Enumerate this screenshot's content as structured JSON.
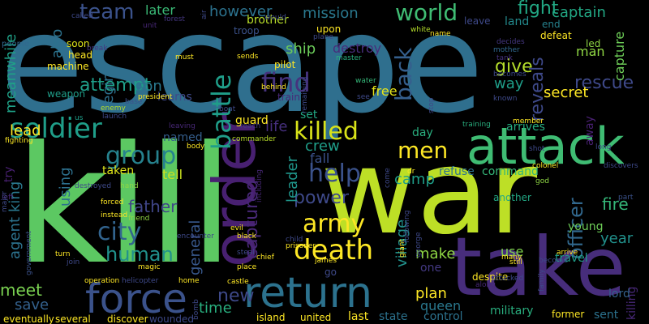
{
  "background": "#000000",
  "words": [
    {
      "text": "escape",
      "color": "#2f6f8e"
    },
    {
      "text": "kill",
      "color": "#5cc862"
    },
    {
      "text": "war",
      "color": "#bddf26"
    },
    {
      "text": "take",
      "color": "#472d7b"
    },
    {
      "text": "attack",
      "color": "#3fbc73"
    },
    {
      "text": "order",
      "color": "#482071"
    },
    {
      "text": "return",
      "color": "#2c728e"
    },
    {
      "text": "force",
      "color": "#3b528b"
    },
    {
      "text": "death",
      "color": "#fde725"
    },
    {
      "text": "army",
      "color": "#fde725"
    },
    {
      "text": "find",
      "color": "#46337e"
    },
    {
      "text": "world",
      "color": "#3fbc73"
    },
    {
      "text": "battle",
      "color": "#1f9e89"
    },
    {
      "text": "soldier",
      "color": "#1f9e89"
    },
    {
      "text": "killed",
      "color": "#d8e219"
    },
    {
      "text": "group",
      "color": "#26828e"
    },
    {
      "text": "city",
      "color": "#32648e"
    },
    {
      "text": "help",
      "color": "#3b528b"
    },
    {
      "text": "human",
      "color": "#21918c"
    },
    {
      "text": "team",
      "color": "#3b528b"
    },
    {
      "text": "men",
      "color": "#fde725"
    },
    {
      "text": "back",
      "color": "#355f8d"
    },
    {
      "text": "fight",
      "color": "#22a884"
    },
    {
      "text": "captain",
      "color": "#22a884"
    },
    {
      "text": "mission",
      "color": "#2a788e"
    },
    {
      "text": "however",
      "color": "#2c728e"
    },
    {
      "text": "rescue",
      "color": "#3e4989"
    },
    {
      "text": "new",
      "color": "#3e4989"
    },
    {
      "text": "power",
      "color": "#3e4989"
    },
    {
      "text": "captured",
      "color": "#482878"
    },
    {
      "text": "officer",
      "color": "#31688e"
    },
    {
      "text": "reveals",
      "color": "#3e4989"
    },
    {
      "text": "father",
      "color": "#404688"
    },
    {
      "text": "give",
      "color": "#b5de2b"
    },
    {
      "text": "plan",
      "color": "#fde725"
    },
    {
      "text": "queen",
      "color": "#2a788e"
    },
    {
      "text": "village",
      "color": "#21918c"
    },
    {
      "text": "general",
      "color": "#38588c"
    },
    {
      "text": "agent",
      "color": "#2c728e"
    },
    {
      "text": "king",
      "color": "#2a788e"
    },
    {
      "text": "attempt",
      "color": "#1f9e89"
    },
    {
      "text": "son",
      "color": "#2a788e"
    },
    {
      "text": "lead",
      "color": "#fde725"
    },
    {
      "text": "camp",
      "color": "#1f9e89"
    },
    {
      "text": "crew",
      "color": "#1f9e89"
    },
    {
      "text": "fire",
      "color": "#35b779"
    },
    {
      "text": "year",
      "color": "#21918c"
    },
    {
      "text": "time",
      "color": "#29af7f"
    },
    {
      "text": "meet",
      "color": "#7ad151"
    },
    {
      "text": "save",
      "color": "#34618d"
    },
    {
      "text": "make",
      "color": "#8fd744"
    },
    {
      "text": "way",
      "color": "#1f9e89"
    },
    {
      "text": "secret",
      "color": "#fde725"
    },
    {
      "text": "later",
      "color": "#3aba76"
    },
    {
      "text": "ship",
      "color": "#6ccd5a"
    },
    {
      "text": "destroy",
      "color": "#472d7b"
    },
    {
      "text": "also",
      "color": "#2c728e"
    },
    {
      "text": "tell",
      "color": "#cae11f"
    },
    {
      "text": "named",
      "color": "#355f8d"
    },
    {
      "text": "life",
      "color": "#462f7e"
    },
    {
      "text": "leader",
      "color": "#1f968b"
    },
    {
      "text": "meanwhile",
      "color": "#1fa187"
    },
    {
      "text": "using",
      "color": "#2d708e"
    },
    {
      "text": "begin",
      "color": "#2d708e"
    },
    {
      "text": "taken",
      "color": "#dde318"
    },
    {
      "text": "free",
      "color": "#e5e419"
    },
    {
      "text": "fall",
      "color": "#3b528b"
    },
    {
      "text": "refuse",
      "color": "#2c728e"
    },
    {
      "text": "command",
      "color": "#35b779"
    },
    {
      "text": "use",
      "color": "#7fd34e"
    },
    {
      "text": "travel",
      "color": "#1f9e89"
    },
    {
      "text": "man",
      "color": "#8fd744"
    },
    {
      "text": "land",
      "color": "#238a8d"
    },
    {
      "text": "capture",
      "color": "#6ece58"
    },
    {
      "text": "arrives",
      "color": "#26ad81"
    },
    {
      "text": "day",
      "color": "#29af7f"
    },
    {
      "text": "military",
      "color": "#29af7f"
    },
    {
      "text": "state",
      "color": "#2c728e"
    },
    {
      "text": "control",
      "color": "#2c728e"
    },
    {
      "text": "killing",
      "color": "#482878"
    },
    {
      "text": "sent",
      "color": "#2c728e"
    },
    {
      "text": "lord",
      "color": "#34618d"
    },
    {
      "text": "young",
      "color": "#6ece58"
    },
    {
      "text": "one",
      "color": "#443983"
    },
    {
      "text": "learns",
      "color": "#3e4989"
    },
    {
      "text": "guard",
      "color": "#fde725"
    },
    {
      "text": "set",
      "color": "#22a884"
    },
    {
      "text": "away",
      "color": "#482071"
    },
    {
      "text": "try",
      "color": "#482071"
    },
    {
      "text": "head",
      "color": "#fde725"
    },
    {
      "text": "machine",
      "color": "#fde725"
    },
    {
      "text": "weapon",
      "color": "#1f9e89"
    },
    {
      "text": "people",
      "color": "#31688e"
    },
    {
      "text": "soon",
      "color": "#dde318"
    },
    {
      "text": "called",
      "color": "#3e4989"
    },
    {
      "text": "forest",
      "color": "#453781"
    },
    {
      "text": "break",
      "color": "#453781"
    },
    {
      "text": "unit",
      "color": "#482878"
    },
    {
      "text": "troop",
      "color": "#3b528b"
    },
    {
      "text": "brother",
      "color": "#b8de29"
    },
    {
      "text": "would",
      "color": "#3e4989"
    },
    {
      "text": "upon",
      "color": "#fde725"
    },
    {
      "text": "plane",
      "color": "#3e4989"
    },
    {
      "text": "white",
      "color": "#b5de2b"
    },
    {
      "text": "leave",
      "color": "#3e4989"
    },
    {
      "text": "end",
      "color": "#26828e"
    },
    {
      "text": "led",
      "color": "#8fd744"
    },
    {
      "text": "decides",
      "color": "#453781"
    },
    {
      "text": "defeat",
      "color": "#fde725"
    },
    {
      "text": "mother",
      "color": "#31688e"
    },
    {
      "text": "tank",
      "color": "#46327e"
    },
    {
      "text": "becomes",
      "color": "#3e4989"
    },
    {
      "text": "known",
      "color": "#3e4989"
    },
    {
      "text": "must",
      "color": "#fde725"
    },
    {
      "text": "sends",
      "color": "#fde725"
    },
    {
      "text": "master",
      "color": "#29af7f"
    },
    {
      "text": "pilot",
      "color": "#fde725"
    },
    {
      "text": "base",
      "color": "#3b528b"
    },
    {
      "text": "enemy",
      "color": "#b5de2b"
    },
    {
      "text": "president",
      "color": "#fde725"
    },
    {
      "text": "launch",
      "color": "#3e4989"
    },
    {
      "text": "train",
      "color": "#482878"
    },
    {
      "text": "water",
      "color": "#35b779"
    },
    {
      "text": "see",
      "color": "#3e4989"
    },
    {
      "text": "us",
      "color": "#1f9e89"
    },
    {
      "text": "fighting",
      "color": "#fde725"
    },
    {
      "text": "leaving",
      "color": "#482878"
    },
    {
      "text": "reach",
      "color": "#443983"
    },
    {
      "text": "training",
      "color": "#29af7f"
    },
    {
      "text": "member",
      "color": "#fde725"
    },
    {
      "text": "commander",
      "color": "#b8de29"
    },
    {
      "text": "body",
      "color": "#fde725"
    },
    {
      "text": "hand",
      "color": "#8fd744"
    },
    {
      "text": "destroyed",
      "color": "#3e4989"
    },
    {
      "text": "forced",
      "color": "#fde725"
    },
    {
      "text": "friend",
      "color": "#8fd744"
    },
    {
      "text": "instead",
      "color": "#fde725"
    },
    {
      "text": "another",
      "color": "#22a884"
    },
    {
      "text": "colonel",
      "color": "#fde725"
    },
    {
      "text": "discovers",
      "color": "#3e4989"
    },
    {
      "text": "part",
      "color": "#3b528b"
    },
    {
      "text": "shot",
      "color": "#3e4989"
    },
    {
      "text": "god",
      "color": "#8fd744"
    },
    {
      "text": "dr",
      "color": "#fde725"
    },
    {
      "text": "left",
      "color": "#482878"
    },
    {
      "text": "government",
      "color": "#3b528b"
    },
    {
      "text": "turn",
      "color": "#fde725"
    },
    {
      "text": "join",
      "color": "#3e4989"
    },
    {
      "text": "magic",
      "color": "#fde725"
    },
    {
      "text": "evil",
      "color": "#fde725"
    },
    {
      "text": "black",
      "color": "#fde725"
    },
    {
      "text": "steal",
      "color": "#3e4989"
    },
    {
      "text": "chief",
      "color": "#fde725"
    },
    {
      "text": "place",
      "color": "#fde725"
    },
    {
      "text": "encounter",
      "color": "#3e4989"
    },
    {
      "text": "including",
      "color": "#482878"
    },
    {
      "text": "prisoner",
      "color": "#fde725"
    },
    {
      "text": "child",
      "color": "#3e4989"
    },
    {
      "text": "james",
      "color": "#fde725"
    },
    {
      "text": "go",
      "color": "#3e4989"
    },
    {
      "text": "despite",
      "color": "#fde725"
    },
    {
      "text": "along",
      "color": "#482878"
    },
    {
      "text": "attacked",
      "color": "#3e4989"
    },
    {
      "text": "many",
      "color": "#fde725"
    },
    {
      "text": "still",
      "color": "#fde725"
    },
    {
      "text": "become",
      "color": "#3e4989"
    },
    {
      "text": "family",
      "color": "#3e4989"
    },
    {
      "text": "arrive",
      "color": "#fde725"
    },
    {
      "text": "george",
      "color": "#3e4989"
    },
    {
      "text": "giant",
      "color": "#fde725"
    },
    {
      "text": "following",
      "color": "#3e4989"
    },
    {
      "text": "operation",
      "color": "#fde725"
    },
    {
      "text": "helicopter",
      "color": "#3e4989"
    },
    {
      "text": "home",
      "color": "#fde725"
    },
    {
      "text": "castle",
      "color": "#fde725"
    },
    {
      "text": "bomb",
      "color": "#3e4989"
    },
    {
      "text": "island",
      "color": "#fde725"
    },
    {
      "text": "united",
      "color": "#fde725"
    },
    {
      "text": "last",
      "color": "#fde725"
    },
    {
      "text": "former",
      "color": "#fde725"
    },
    {
      "text": "major",
      "color": "#3e4989"
    },
    {
      "text": "eventually",
      "color": "#fde725"
    },
    {
      "text": "several",
      "color": "#fde725"
    },
    {
      "text": "discover",
      "color": "#fde725"
    },
    {
      "text": "wounded",
      "color": "#3e4989"
    },
    {
      "text": "long",
      "color": "#3e4989"
    },
    {
      "text": "stop",
      "color": "#3e4989"
    },
    {
      "text": "boat",
      "color": "#3e4989"
    },
    {
      "text": "behind",
      "color": "#fde725"
    },
    {
      "text": "air",
      "color": "#3e4989"
    },
    {
      "text": "name",
      "color": "#fde725"
    },
    {
      "text": "remaining",
      "color": "#3e4989"
    },
    {
      "text": "come",
      "color": "#3e4989"
    }
  ]
}
